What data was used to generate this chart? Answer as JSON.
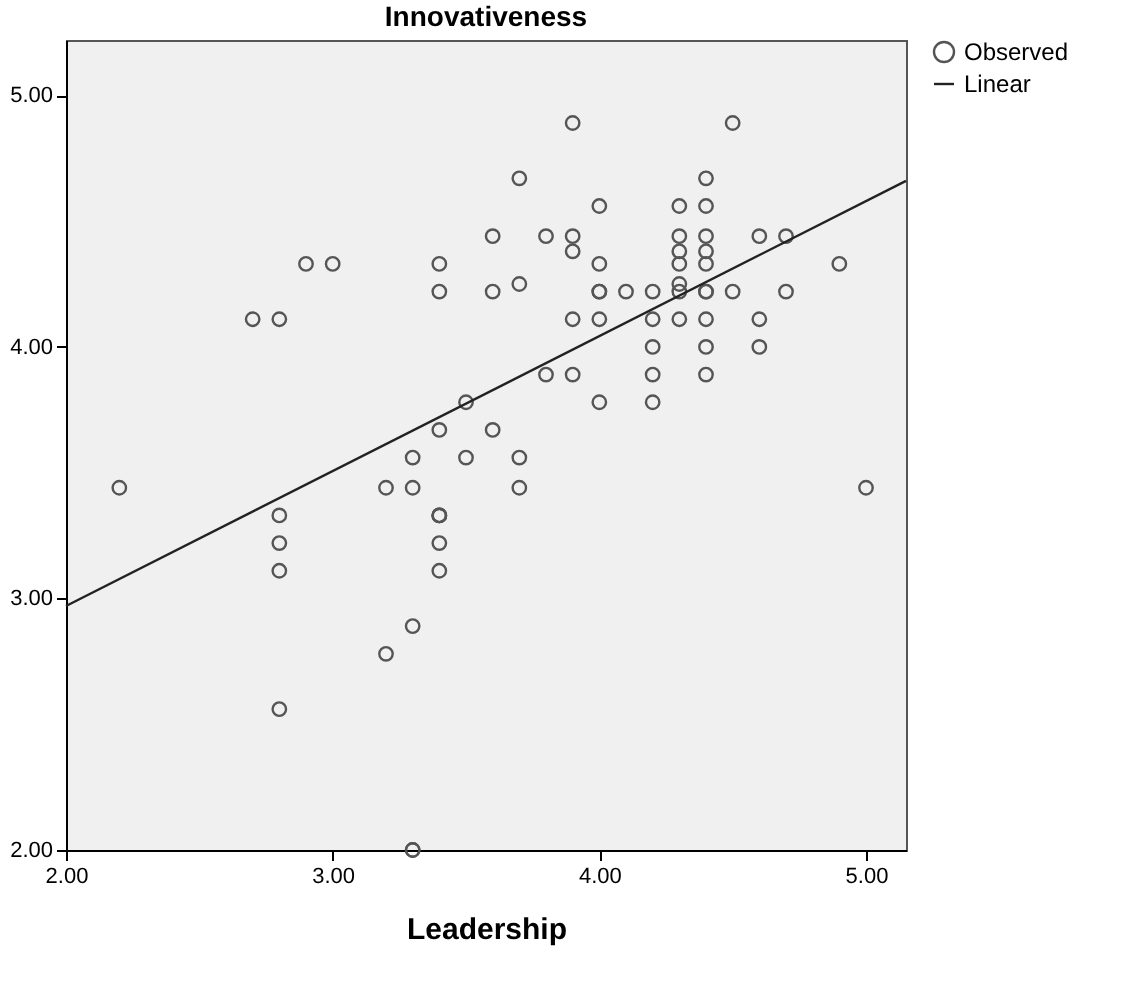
{
  "chart_data": {
    "type": "scatter",
    "title": "Innovativeness",
    "xlabel": "Leadership",
    "xlim": [
      2,
      5.15
    ],
    "ylim": [
      2,
      5.22
    ],
    "xticks": [
      {
        "value": 2,
        "label": "2.00"
      },
      {
        "value": 3,
        "label": "3.00"
      },
      {
        "value": 4,
        "label": "4.00"
      },
      {
        "value": 5,
        "label": "5.00"
      }
    ],
    "yticks": [
      {
        "value": 2,
        "label": "2.00"
      },
      {
        "value": 3,
        "label": "3.00"
      },
      {
        "value": 4,
        "label": "4.00"
      },
      {
        "value": 5,
        "label": "5.00"
      }
    ],
    "grid": false,
    "legend": "top right",
    "marker": "circle",
    "series": [
      {
        "name": "Observed",
        "color": "#555555",
        "x": [
          2.2,
          2.7,
          2.8,
          2.9,
          3.0,
          2.8,
          2.8,
          2.8,
          2.8,
          3.2,
          3.3,
          3.3,
          3.4,
          3.4,
          3.3,
          3.4,
          3.4,
          3.3,
          3.2,
          3.3,
          3.4,
          3.4,
          3.4,
          3.4,
          3.5,
          3.5,
          3.6,
          3.6,
          3.6,
          3.7,
          3.7,
          3.7,
          3.7,
          3.8,
          3.9,
          3.9,
          3.9,
          3.9,
          3.8,
          3.9,
          4.0,
          4.0,
          4.0,
          4.0,
          4.0,
          4.0,
          4.1,
          4.2,
          4.2,
          4.2,
          4.2,
          4.2,
          4.3,
          4.3,
          4.3,
          4.3,
          4.3,
          4.3,
          4.3,
          4.4,
          4.4,
          4.4,
          4.4,
          4.4,
          4.4,
          4.4,
          4.4,
          4.4,
          4.4,
          4.5,
          4.5,
          4.6,
          4.6,
          4.6,
          4.7,
          4.7,
          4.9,
          5.0
        ],
        "values": [
          3.44,
          4.11,
          4.11,
          4.33,
          4.33,
          3.33,
          3.22,
          3.11,
          2.56,
          3.44,
          3.44,
          3.56,
          3.33,
          3.33,
          2.89,
          3.22,
          3.11,
          2.0,
          2.78,
          2.0,
          4.33,
          4.22,
          3.67,
          3.33,
          3.78,
          3.56,
          4.44,
          4.22,
          3.67,
          4.67,
          4.25,
          3.56,
          3.44,
          4.44,
          4.44,
          4.38,
          4.89,
          4.11,
          3.89,
          3.89,
          4.56,
          4.33,
          4.22,
          4.11,
          3.78,
          4.22,
          4.22,
          4.22,
          4.11,
          4.0,
          3.89,
          3.78,
          4.56,
          4.44,
          4.38,
          4.33,
          4.22,
          4.25,
          4.11,
          4.67,
          4.56,
          4.44,
          4.38,
          4.33,
          4.22,
          4.11,
          4.0,
          3.89,
          4.22,
          4.89,
          4.22,
          4.44,
          4.11,
          4.0,
          4.44,
          4.22,
          4.33,
          3.44
        ]
      },
      {
        "name": "Linear",
        "type": "line",
        "color": "#222222",
        "x": [
          2,
          5.15
        ],
        "values": [
          2.97,
          4.66
        ],
        "line_style": "solid",
        "marker": "none"
      }
    ]
  }
}
